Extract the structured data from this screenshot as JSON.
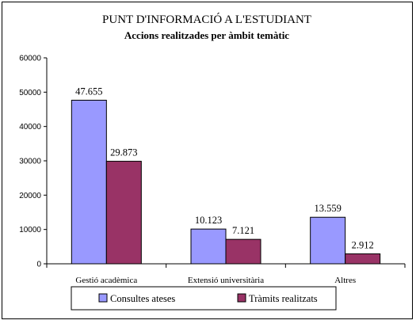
{
  "chart_data": {
    "type": "bar",
    "title": "PUNT D'INFORMACIÓ A L'ESTUDIANT",
    "subtitle": "Accions realitzades per àmbit temàtic",
    "categories": [
      "Gestió acadèmica",
      "Extensió universitària",
      "Altres"
    ],
    "series": [
      {
        "name": "Consultes ateses",
        "values": [
          47655,
          10123,
          13559
        ],
        "labels": [
          "47.655",
          "10.123",
          "13.559"
        ],
        "color": "#9999ff"
      },
      {
        "name": "Tràmits realitzats",
        "values": [
          29873,
          7121,
          2912
        ],
        "labels": [
          "29.873",
          "7.121",
          "2.912"
        ],
        "color": "#993366"
      }
    ],
    "ylim": [
      0,
      60000
    ],
    "yticks": [
      0,
      10000,
      20000,
      30000,
      40000,
      50000,
      60000
    ],
    "ytick_labels": [
      "0",
      "10000",
      "20000",
      "30000",
      "40000",
      "50000",
      "60000"
    ],
    "grid": false,
    "legend": "bottom"
  }
}
